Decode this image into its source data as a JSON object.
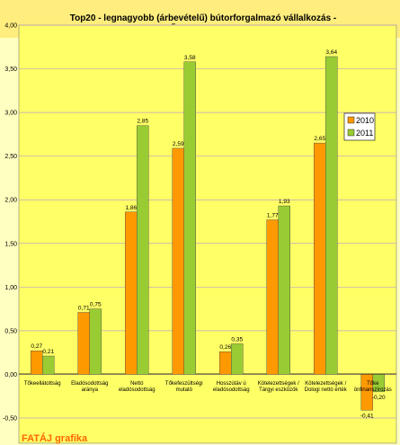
{
  "brand": "FATÁJ grafika",
  "chart_data": {
    "type": "bar",
    "title": "Top20 - legnagyobb (árbevételű) bútorforgalmazó vállalkozás -",
    "subtitle": "TŐKESZERKEZET",
    "categories": [
      [
        "Tőkeellátottság"
      ],
      [
        "Eladósodottság",
        "aránya"
      ],
      [
        "Nettó",
        "eladósodottság"
      ],
      [
        "Tőkefeszültségi",
        "mutató"
      ],
      [
        "Hosszútáv ú",
        "eladósodottság"
      ],
      [
        "Kötelezettségek /",
        "Tárgyi eszközök"
      ],
      [
        "Kötelezettségek /",
        "Dologi nettó érték"
      ],
      [
        "Tőke",
        "önfinanszírozás"
      ]
    ],
    "series": [
      {
        "name": "2010",
        "color": "#ff9900",
        "values": [
          0.27,
          0.71,
          1.86,
          2.59,
          0.26,
          1.77,
          2.65,
          -0.41
        ],
        "labels": [
          "0,27",
          "0,71",
          "1,86",
          "2,59",
          "0,26",
          "1,77",
          "2,65",
          "-0,41"
        ]
      },
      {
        "name": "2011",
        "color": "#99cc33",
        "values": [
          0.21,
          0.75,
          2.85,
          3.58,
          0.35,
          1.93,
          3.64,
          -0.2
        ],
        "labels": [
          "0,21",
          "0,75",
          "2,85",
          "3,58",
          "0,35",
          "1,93",
          "3,64",
          "-0,20"
        ]
      }
    ],
    "ylim": [
      -0.5,
      4.0
    ],
    "yticks": [
      -0.5,
      0.0,
      0.5,
      1.0,
      1.5,
      2.0,
      2.5,
      3.0,
      3.5,
      4.0
    ],
    "ytick_labels": [
      "-0,50",
      "0,00",
      "0,50",
      "1,00",
      "1,50",
      "2,00",
      "2,50",
      "3,00",
      "3,50",
      "4,00"
    ],
    "grid": true,
    "legend_position": "right",
    "colors": {
      "plot_background": "#ffff66",
      "page_background": "#ffffc0",
      "gridline": "#c0a0c0",
      "title_band": "#ffcc00"
    }
  }
}
